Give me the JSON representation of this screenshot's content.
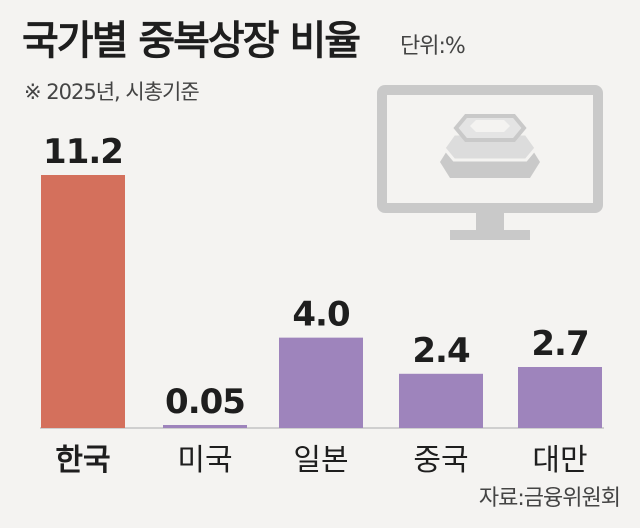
{
  "title": "국가별 중복상장 비율",
  "unit": "단위:%",
  "subtitle": "※  2025년, 시총기준",
  "source": "자료:금융위원회",
  "colors": {
    "highlight": "#d4705c",
    "default": "#9e84bc",
    "text": "#1e1e1e",
    "muted": "#444444",
    "icon": "#c9c9c9",
    "baseline": "#cfcfcf"
  },
  "illustration": "monitor-with-stacked-coin-icon",
  "chart_data": {
    "type": "bar",
    "categories": [
      "한국",
      "미국",
      "일본",
      "중국",
      "대만"
    ],
    "values": [
      11.2,
      0.05,
      4.0,
      2.4,
      2.7
    ],
    "value_labels": [
      "11.2",
      "0.05",
      "4.0",
      "2.4",
      "2.7"
    ],
    "highlight_index": 0,
    "ylim": [
      0,
      11.2
    ],
    "grid": false,
    "legend": "none"
  }
}
